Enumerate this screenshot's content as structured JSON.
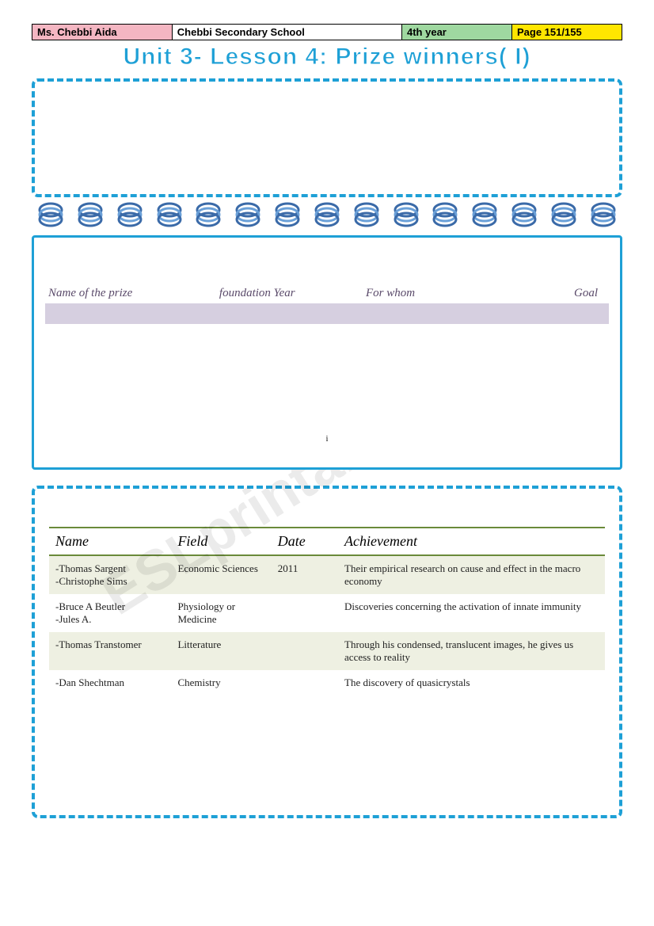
{
  "header": {
    "teacher": "Ms. Chebbi Aida",
    "school": "Chebbi Secondary School",
    "year": "4th year",
    "page": "Page 151/155"
  },
  "title": "Unit 3- Lesson 4: Prize winners( I)",
  "prize_table": {
    "headers": [
      "Name of the prize",
      "foundation Year",
      "For whom",
      "Goal"
    ],
    "header_color": "#5a4a6a",
    "band_color": "#d6cfe0"
  },
  "tiny_mark": "i",
  "achievements": {
    "columns": [
      "Name",
      "Field",
      "Date",
      "Achievement"
    ],
    "header_border_color": "#6a8a3a",
    "alt_row_color": "#eef0e2",
    "rows": [
      {
        "name": "-Thomas Sargent\n-Christophe Sims",
        "field": "Economic Sciences",
        "date": "2011",
        "achievement": "Their empirical research on cause and effect in the macro economy"
      },
      {
        "name": "-Bruce A Beutler\n-Jules A.",
        "field": "Physiology or Medicine",
        "date": "",
        "achievement": "Discoveries concerning the activation of innate immunity"
      },
      {
        "name": "-Thomas Transtomer",
        "field": "Litterature",
        "date": "",
        "achievement": "Through his condensed, translucent images, he gives us access to reality"
      },
      {
        "name": "-Dan Shechtman",
        "field": "Chemistry",
        "date": "",
        "achievement": "The discovery of quasicrystals"
      }
    ]
  },
  "watermark": "ESLprintables.com",
  "colors": {
    "accent": "#1ea0d6",
    "header_pink": "#f4b6c2",
    "header_green": "#9fd8a0",
    "header_yellow": "#ffe600"
  }
}
